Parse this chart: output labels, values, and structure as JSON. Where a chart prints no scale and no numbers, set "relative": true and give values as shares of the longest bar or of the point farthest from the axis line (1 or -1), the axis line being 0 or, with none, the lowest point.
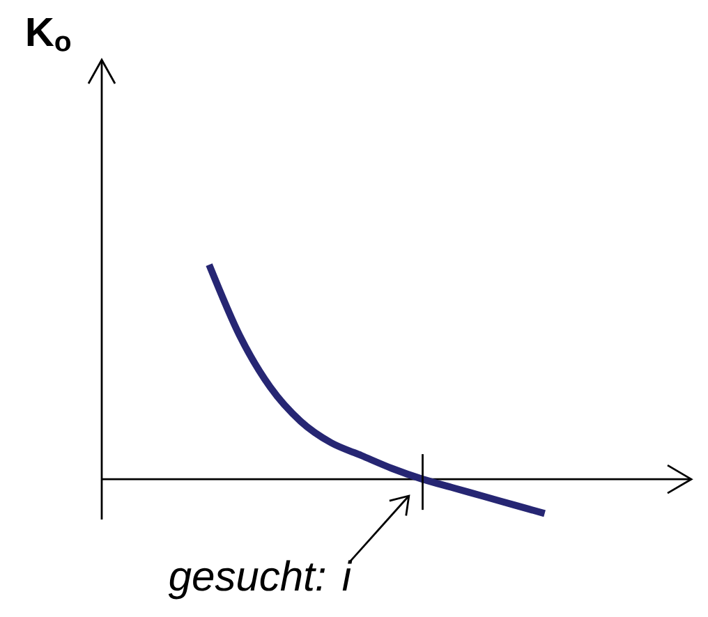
{
  "chart_data": {
    "type": "line",
    "relative": true,
    "marker": "none",
    "line_style": "solid",
    "categories": [
      null,
      null,
      null,
      null,
      null,
      null,
      null,
      null,
      null,
      null,
      null,
      null
    ],
    "series": [
      {
        "color": "#262673",
        "values": [
          1,
          0.67,
          0.43,
          0.27,
          0.17,
          0.11,
          0.05,
          0,
          -0.04,
          -0.08,
          -0.12,
          -0.16
        ]
      }
    ],
    "annotations": [
      "K$_{o}$",
      "gesucht: i"
    ]
  }
}
